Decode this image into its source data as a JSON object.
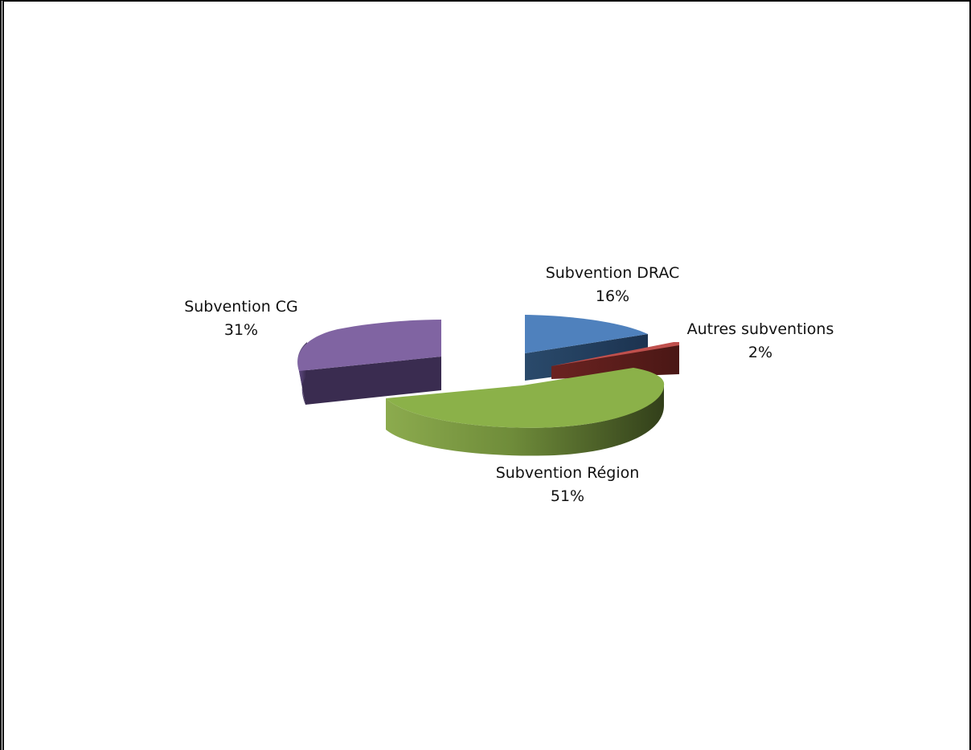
{
  "chart_data": {
    "type": "pie",
    "style": "3d-exploded",
    "slices": [
      {
        "name": "Subvention DRAC",
        "value": 16,
        "label": "16%",
        "color": "#4f81bd"
      },
      {
        "name": "Autres subventions",
        "value": 2,
        "label": "2%",
        "color": "#c0504d"
      },
      {
        "name": "Subvention  Région",
        "value": 51,
        "label": "51%",
        "color": "#9bbb59"
      },
      {
        "name": "Subvention CG",
        "value": 31,
        "label": "31%",
        "color": "#8064a2"
      }
    ]
  }
}
